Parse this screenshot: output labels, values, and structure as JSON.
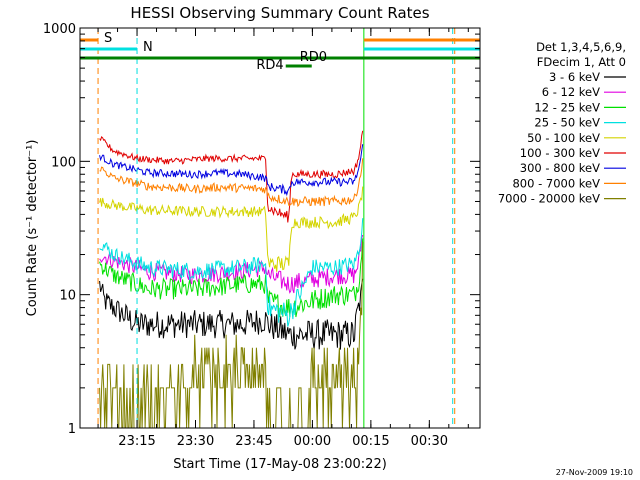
{
  "chart_data": {
    "type": "line",
    "title": "HESSI Observing Summary Count Rates",
    "xlabel": "Start Time (17-May-08 23:00:22)",
    "ylabel": "Count Rate (s⁻¹ detector⁻¹)",
    "y_scale": "log",
    "ylim": [
      1,
      1000
    ],
    "xlim": [
      23.0061,
      24.7167
    ],
    "x_unit": "hours since 17-May-08 00:00",
    "x_ticks": [
      {
        "x": 23.25,
        "label": "23:15"
      },
      {
        "x": 23.5,
        "label": "23:30"
      },
      {
        "x": 23.75,
        "label": "23:45"
      },
      {
        "x": 24.0,
        "label": "00:00"
      },
      {
        "x": 24.25,
        "label": "00:15"
      },
      {
        "x": 24.5,
        "label": "00:30"
      }
    ],
    "y_ticks": [
      {
        "y": 1,
        "label": "1"
      },
      {
        "y": 10,
        "label": "10"
      },
      {
        "y": 100,
        "label": "100"
      },
      {
        "y": 1000,
        "label": "1000"
      }
    ],
    "legend_header": [
      "Det 1,3,4,5,6,9,",
      "FDecim 1, Att 0"
    ],
    "legend_position": "right",
    "footer_date": "27-Nov-2009 19:10",
    "series": [
      {
        "name": "3 - 6 keV",
        "color": "#000000",
        "x": [
          23.09,
          23.11,
          23.15,
          23.25,
          23.4,
          23.55,
          23.7,
          23.8,
          23.81,
          23.9,
          24.0,
          24.1,
          24.18,
          24.19,
          24.205,
          24.215
        ],
        "y": [
          12,
          9,
          8,
          6,
          6,
          6,
          6,
          6.5,
          6,
          5,
          5,
          5,
          5,
          7,
          9,
          12
        ]
      },
      {
        "name": "6 - 12 keV",
        "color": "#e000e0",
        "x": [
          23.09,
          23.15,
          23.3,
          23.5,
          23.7,
          23.8,
          23.81,
          23.9,
          24.0,
          24.1,
          24.18,
          24.2,
          24.215
        ],
        "y": [
          20,
          18,
          15,
          14,
          15,
          16,
          14,
          12,
          13,
          14,
          14,
          18,
          30
        ]
      },
      {
        "name": "12 - 25 keV",
        "color": "#00e000",
        "x": [
          23.09,
          23.15,
          23.3,
          23.5,
          23.7,
          23.8,
          23.81,
          23.9,
          24.0,
          24.1,
          24.18,
          24.2,
          24.215
        ],
        "y": [
          17,
          14,
          11,
          11,
          12,
          12,
          9,
          8,
          9,
          10,
          10,
          13,
          25
        ]
      },
      {
        "name": "25 - 50 keV",
        "color": "#00e0e0",
        "x": [
          23.09,
          23.15,
          23.3,
          23.5,
          23.7,
          23.8,
          23.81,
          23.9,
          24.0,
          24.1,
          24.18,
          24.2,
          24.215
        ],
        "y": [
          25,
          20,
          16,
          15,
          16,
          17,
          8,
          7,
          16,
          16,
          17,
          22,
          35
        ]
      },
      {
        "name": "50 - 100 keV",
        "color": "#d4d400",
        "x": [
          23.09,
          23.15,
          23.3,
          23.5,
          23.7,
          23.8,
          23.81,
          23.9,
          23.91,
          24.0,
          24.1,
          24.18,
          24.2,
          24.215
        ],
        "y": [
          50,
          47,
          43,
          42,
          42,
          42,
          17,
          17,
          35,
          35,
          35,
          38,
          45,
          60
        ]
      },
      {
        "name": "100 - 300 keV",
        "color": "#e00000",
        "x": [
          23.09,
          23.15,
          23.25,
          23.4,
          23.55,
          23.7,
          23.8,
          23.81,
          23.87,
          23.9,
          23.91,
          24.0,
          24.1,
          24.18,
          24.2,
          24.215
        ],
        "y": [
          150,
          120,
          105,
          100,
          105,
          105,
          105,
          45,
          40,
          38,
          80,
          80,
          80,
          85,
          110,
          170
        ]
      },
      {
        "name": "300 - 800 keV",
        "color": "#0000e0",
        "x": [
          23.09,
          23.15,
          23.3,
          23.5,
          23.6,
          23.7,
          23.8,
          23.81,
          23.9,
          23.91,
          24.0,
          24.1,
          24.18,
          24.2,
          24.215
        ],
        "y": [
          110,
          95,
          82,
          80,
          82,
          80,
          75,
          65,
          60,
          70,
          70,
          70,
          70,
          90,
          130
        ]
      },
      {
        "name": "800 - 7000 keV",
        "color": "#ff8000",
        "x": [
          23.09,
          23.15,
          23.3,
          23.5,
          23.6,
          23.7,
          23.8,
          23.81,
          23.9,
          23.91,
          24.0,
          24.1,
          24.18,
          24.2,
          24.215
        ],
        "y": [
          90,
          75,
          65,
          62,
          64,
          63,
          62,
          55,
          50,
          50,
          50,
          50,
          52,
          70,
          100
        ]
      },
      {
        "name": "7000 - 20000 keV",
        "color": "#808000",
        "x": [
          23.09,
          23.15,
          23.3,
          23.5,
          23.7,
          23.8,
          23.81,
          23.9,
          24.0,
          24.1,
          24.18,
          24.2,
          24.215
        ],
        "y": [
          2,
          1.5,
          1.5,
          2.5,
          2.5,
          2.5,
          1,
          1,
          2,
          2,
          2,
          4,
          15
        ]
      }
    ],
    "annotations": [
      {
        "text": "S",
        "color": "#ff8000",
        "x": 23.0833
      },
      {
        "text": "N",
        "color": "#00e0e0",
        "x": 23.25
      },
      {
        "text": "RD4",
        "color": "#008000",
        "x": 23.88
      },
      {
        "text": "RD0",
        "color": "#008000",
        "x": 23.98
      }
    ]
  }
}
